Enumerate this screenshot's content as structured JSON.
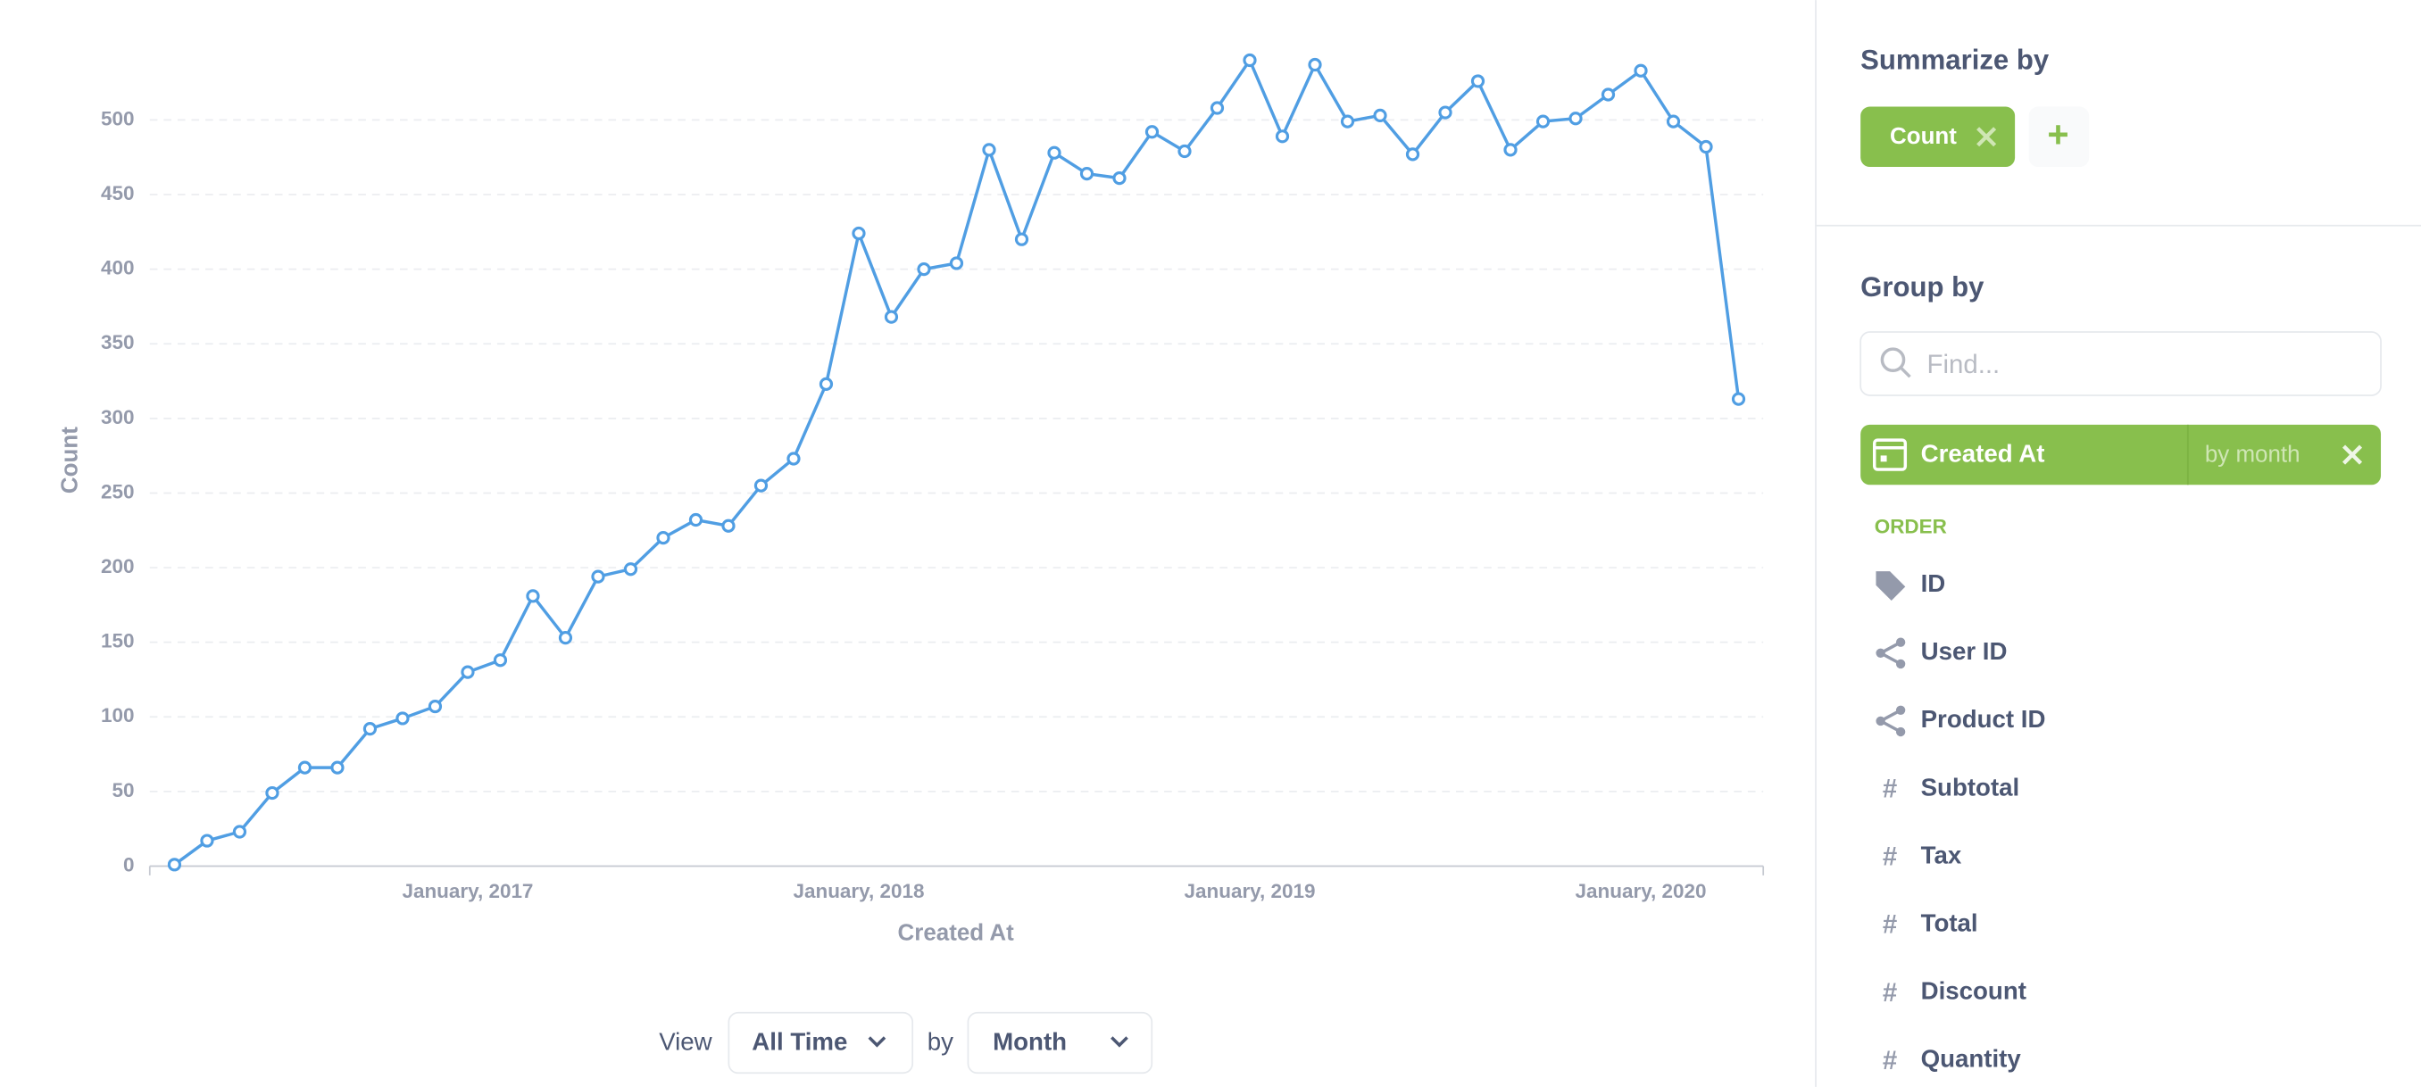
{
  "chart_data": {
    "type": "line",
    "x_label": "Created At",
    "y_label": "Count",
    "categories": [
      null,
      null,
      null,
      null,
      null,
      null,
      null,
      null,
      null,
      "January, 2017",
      null,
      null,
      null,
      null,
      null,
      null,
      null,
      null,
      null,
      null,
      null,
      "January, 2018",
      null,
      null,
      null,
      null,
      null,
      null,
      null,
      null,
      null,
      null,
      null,
      "January, 2019",
      null,
      null,
      null,
      null,
      null,
      null,
      null,
      null,
      null,
      null,
      null,
      "January, 2020",
      null,
      null,
      null
    ],
    "series": [
      {
        "name": "Count",
        "color": "#509ee3",
        "values": [
          1,
          17,
          23,
          49,
          66,
          66,
          92,
          99,
          107,
          130,
          138,
          181,
          153,
          194,
          199,
          220,
          232,
          228,
          255,
          273,
          323,
          424,
          368,
          400,
          404,
          480,
          420,
          478,
          464,
          461,
          492,
          479,
          508,
          540,
          489,
          537,
          499,
          503,
          477,
          505,
          526,
          480,
          499,
          501,
          517,
          533,
          499,
          482,
          313
        ]
      }
    ],
    "ylim": [
      0,
      560
    ],
    "yticks": [
      0,
      50,
      100,
      150,
      200,
      250,
      300,
      350,
      400,
      450,
      500
    ],
    "grid": true
  },
  "footer": {
    "view": "View",
    "range": "All Time",
    "by": "by",
    "unit": "Month"
  },
  "sidebar": {
    "summarize_title": "Summarize by",
    "metric": "Count",
    "add": "+",
    "group_title": "Group by",
    "search_placeholder": "Find...",
    "selected": {
      "label": "Created At",
      "bucket": "by month"
    },
    "section": "ORDER",
    "fields": [
      "ID",
      "User ID",
      "Product ID",
      "Subtotal",
      "Tax",
      "Total",
      "Discount",
      "Quantity"
    ]
  }
}
